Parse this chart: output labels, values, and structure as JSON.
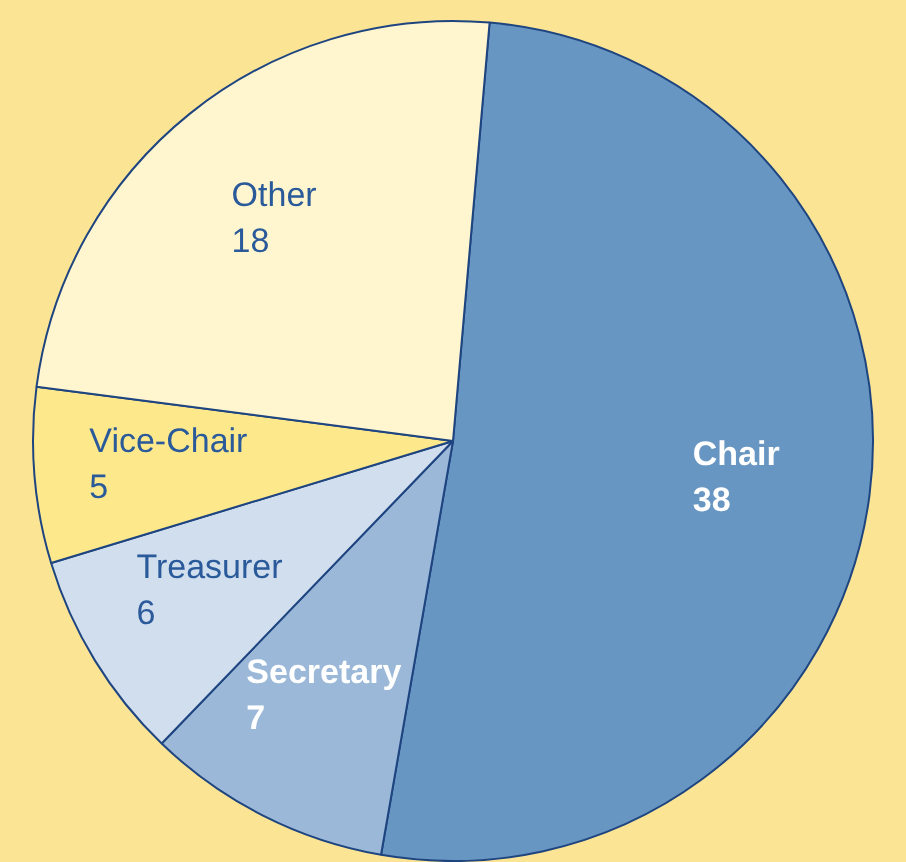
{
  "chart_data": {
    "type": "pie",
    "categories": [
      "Chair",
      "Secretary",
      "Treasurer",
      "Vice-Chair",
      "Other"
    ],
    "values": [
      38,
      7,
      6,
      5,
      18
    ],
    "colors": [
      "#6896c2",
      "#9bb8d8",
      "#d0deee",
      "#fde98c",
      "#fff6cf"
    ],
    "data_labels": true,
    "legend": false
  }
}
